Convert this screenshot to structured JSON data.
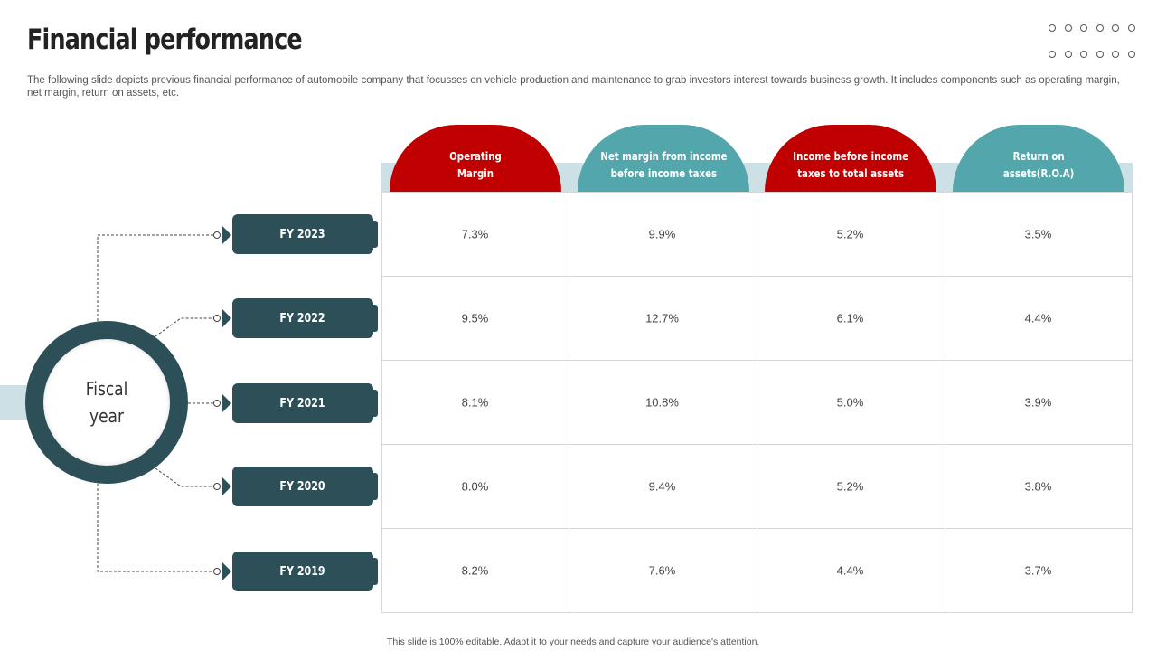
{
  "slide": {
    "title": "Financial performance",
    "description": "The following slide depicts previous financial performance of automobile company that focusses on vehicle production and maintenance to grab investors interest towards business growth. It includes components such as operating margin, net margin, return on assets, etc.",
    "footer": "This slide is 100% editable. Adapt it to your needs and capture your audience's attention.",
    "center_label": "Fiscal\nyear"
  },
  "colors": {
    "red": "#c00000",
    "teal": "#53a6ab",
    "dark": "#2c4f58",
    "light": "#cde0e5"
  },
  "table": {
    "columns": [
      {
        "label": "Operating\nMargin",
        "color": "red"
      },
      {
        "label": "Net margin from income\nbefore income taxes",
        "color": "teal"
      },
      {
        "label": "Income before income\ntaxes to total assets",
        "color": "red"
      },
      {
        "label": "Return on\nassets(R.O.A)",
        "color": "teal"
      }
    ],
    "rows": [
      {
        "year": "FY 2023",
        "values": [
          "7.3%",
          "9.9%",
          "5.2%",
          "3.5%"
        ]
      },
      {
        "year": "FY 2022",
        "values": [
          "9.5%",
          "12.7%",
          "6.1%",
          "4.4%"
        ]
      },
      {
        "year": "FY 2021",
        "values": [
          "8.1%",
          "10.8%",
          "5.0%",
          "3.9%"
        ]
      },
      {
        "year": "FY 2020",
        "values": [
          "8.0%",
          "9.4%",
          "5.2%",
          "3.8%"
        ]
      },
      {
        "year": "FY 2019",
        "values": [
          "8.2%",
          "7.6%",
          "4.4%",
          "3.7%"
        ]
      }
    ]
  }
}
